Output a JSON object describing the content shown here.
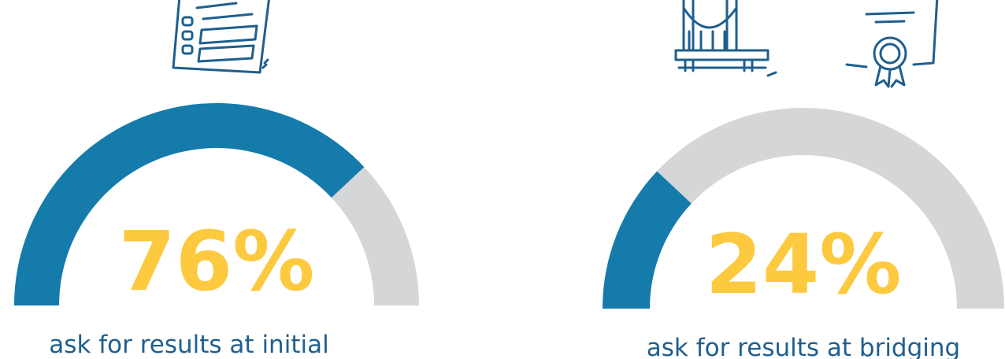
{
  "chart_data": [
    {
      "type": "gauge",
      "values": [
        76
      ],
      "value_labels": [
        "76%"
      ],
      "caption": "ask for results at initial",
      "color": "#157bab",
      "track_color": "#d5d6d8",
      "label_color": "#fcc93f",
      "ylim": [
        0,
        100
      ]
    },
    {
      "type": "gauge",
      "values": [
        24
      ],
      "value_labels": [
        "24%"
      ],
      "caption": "ask for results at bridging",
      "color": "#157bab",
      "track_color": "#d5d6d8",
      "label_color": "#fcc93f",
      "ylim": [
        0,
        100
      ]
    }
  ]
}
